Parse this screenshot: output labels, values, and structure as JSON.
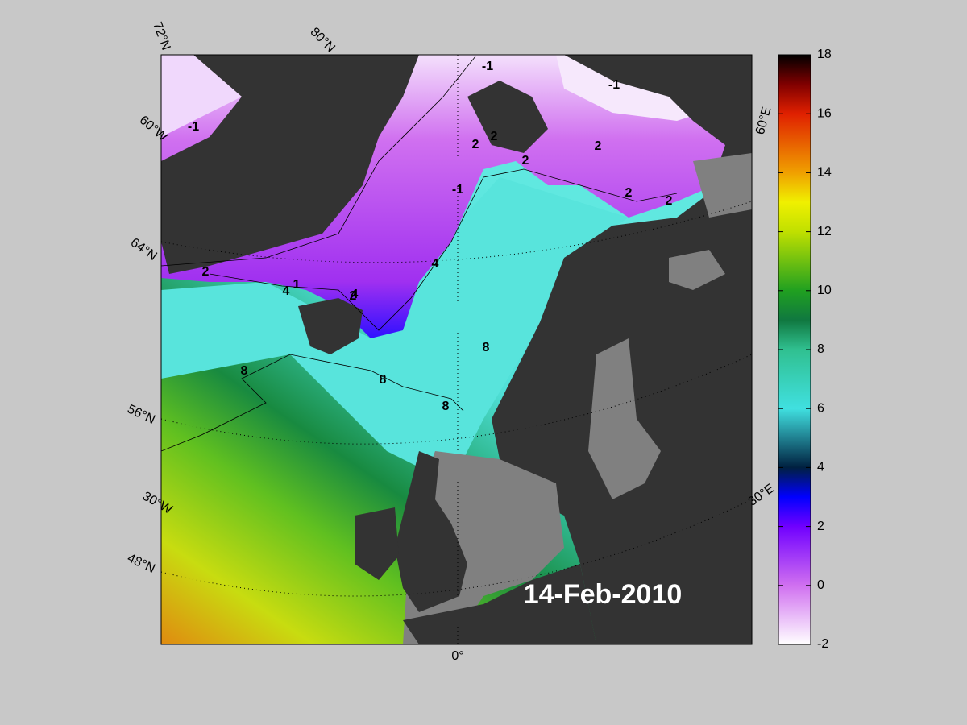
{
  "map": {
    "date": "14-Feb-2010",
    "grid_labels": [
      "72°N",
      "80°N",
      "60°W",
      "64°N",
      "56°N",
      "30°W",
      "48°N",
      "0°",
      "60°E",
      "30°E"
    ],
    "contour_labels": [
      "-1",
      "-1",
      "-1",
      "-1",
      "2",
      "2",
      "2",
      "2",
      "2",
      "2",
      "2",
      "4",
      "4",
      "4",
      "1",
      "2",
      "8",
      "8",
      "8",
      "8"
    ]
  },
  "colorbar": {
    "lim": [
      -2,
      18
    ],
    "ticks": [
      -2,
      0,
      2,
      4,
      6,
      8,
      10,
      12,
      14,
      16,
      18
    ]
  }
}
